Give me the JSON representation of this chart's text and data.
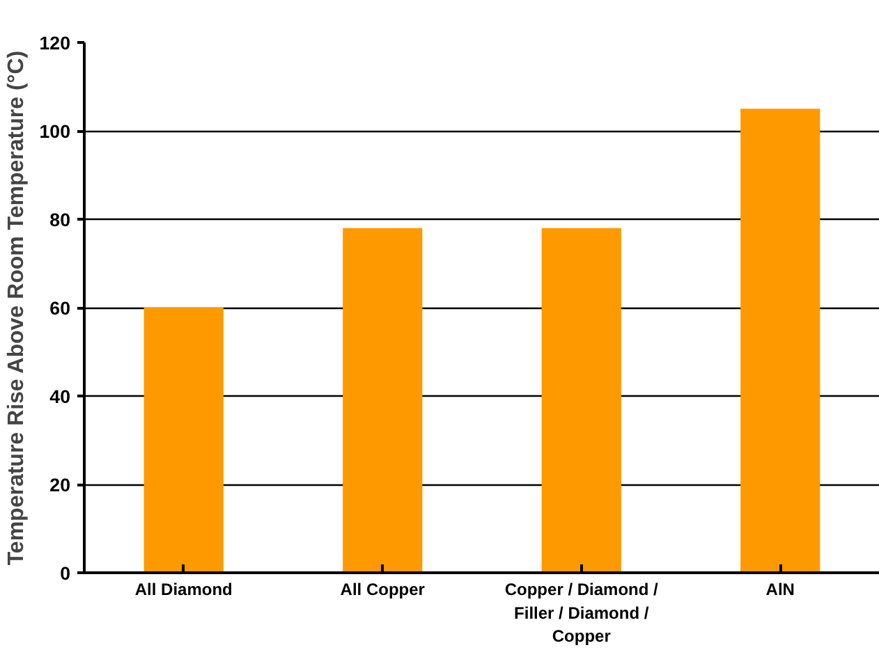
{
  "chart_data": {
    "type": "bar",
    "ylabel": "Temperature Rise Above Room Temperature (°C)",
    "categories": [
      "All Diamond",
      "All Copper",
      "Copper / Diamond / Filler / Diamond / Copper",
      "AlN"
    ],
    "values": [
      60,
      78,
      78,
      105
    ],
    "color": "#ff9900",
    "ylim": [
      0,
      120
    ],
    "yticks": [
      0,
      20,
      40,
      60,
      80,
      100,
      120
    ],
    "grid": "y"
  }
}
